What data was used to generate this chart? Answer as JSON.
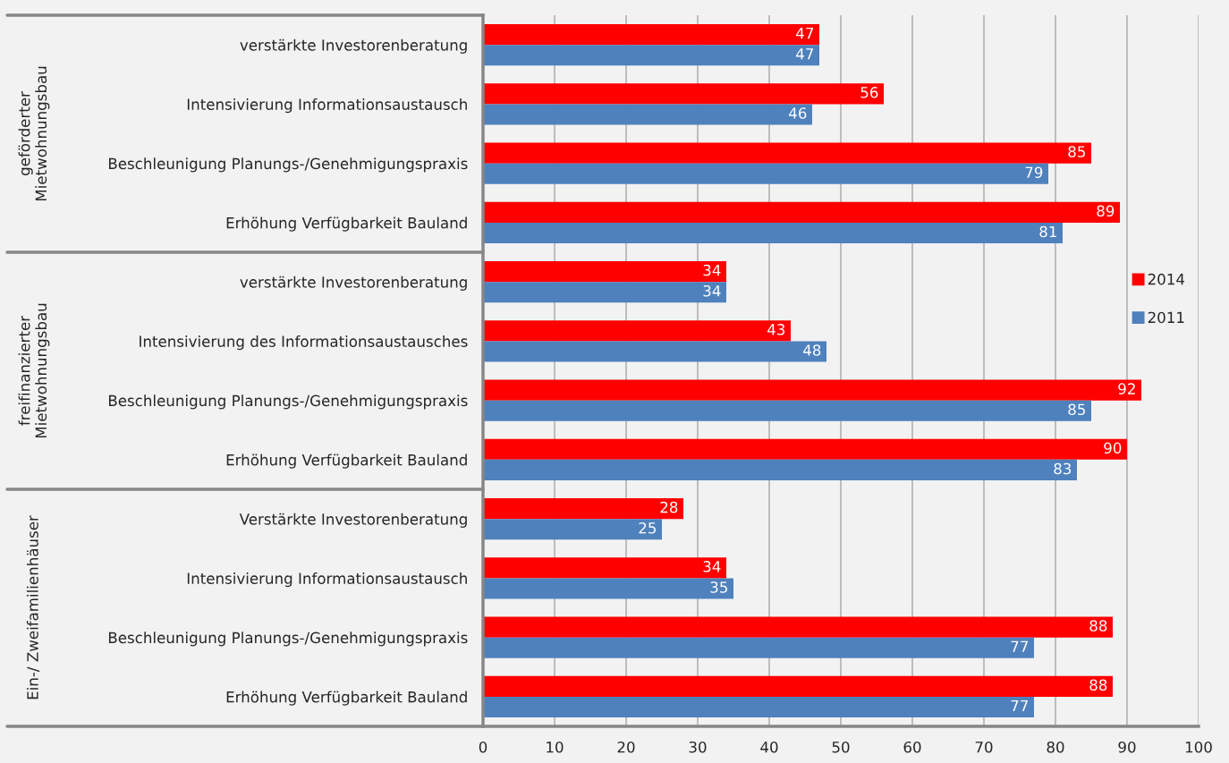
{
  "chart_data": {
    "type": "bar",
    "orientation": "horizontal",
    "categories": [
      "verstärkte Investorenberatung",
      "Intensivierung Informationsaustausch",
      "Beschleunigung Planungs-/Genehmigungspraxis",
      "Erhöhung Verfügbarkeit Bauland",
      "verstärkte Investorenberatung",
      "Intensivierung des Informationsaustausches",
      "Beschleunigung Planungs-/Genehmigungspraxis",
      "Erhöhung Verfügbarkeit Bauland",
      "Verstärkte Investorenberatung",
      "Intensivierung Informationsaustausch",
      "Beschleunigung Planungs-/Genehmigungspraxis",
      "Erhöhung Verfügbarkeit Bauland"
    ],
    "series": [
      {
        "name": "2014",
        "color": "#ff0000",
        "values": [
          47,
          56,
          85,
          89,
          34,
          43,
          92,
          90,
          28,
          34,
          88,
          88
        ]
      },
      {
        "name": "2011",
        "color": "#4f81bd",
        "values": [
          47,
          46,
          79,
          81,
          34,
          48,
          85,
          83,
          25,
          35,
          77,
          77
        ]
      }
    ],
    "xlim": [
      0,
      100
    ],
    "xticks": [
      0,
      10,
      20,
      30,
      40,
      50,
      60,
      70,
      80,
      90,
      100
    ],
    "grid": "x",
    "legend": "right",
    "data_labels": true,
    "annotations": [
      "geförderter\nMietwohnungsbau",
      "freifinanzierter\nMietwohnungsbau",
      "Ein-/ Zweifamilienhäuser"
    ]
  }
}
